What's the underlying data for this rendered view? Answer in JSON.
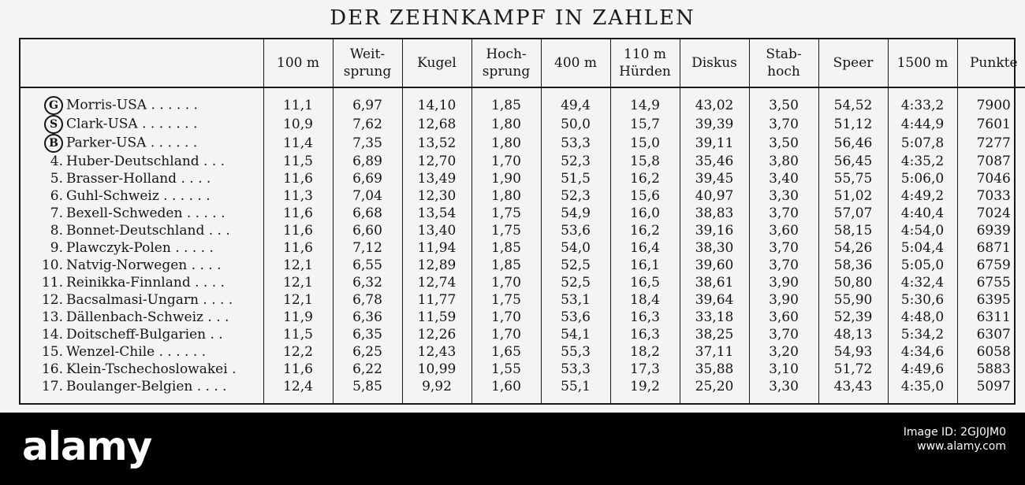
{
  "title": "DER ZEHNKAMPF IN ZAHLEN",
  "headers": [
    "",
    "100 m",
    "Weit-\nsprung",
    "Kugel",
    "Hoch-\nsprung",
    "400 m",
    "110 m\nHürden",
    "Diskus",
    "Stab-\nhoch",
    "Speer",
    "1500 m",
    "Punkte"
  ],
  "rows": [
    {
      "rank": "",
      "medal": "G",
      "name": "Morris-USA",
      "dots": " . . . . . .",
      "values": [
        "11,1",
        "6,97",
        "14,10",
        "1,85",
        "49,4",
        "14,9",
        "43,02",
        "3,50",
        "54,52",
        "4:33,2",
        "7900"
      ]
    },
    {
      "rank": "",
      "medal": "S",
      "name": "Clark-USA",
      "dots": " . . . . . . .",
      "values": [
        "10,9",
        "7,62",
        "12,68",
        "1,80",
        "50,0",
        "15,7",
        "39,39",
        "3,70",
        "51,12",
        "4:44,9",
        "7601"
      ]
    },
    {
      "rank": "",
      "medal": "B",
      "name": "Parker-USA",
      "dots": " . . . . . .",
      "values": [
        "11,4",
        "7,35",
        "13,52",
        "1,80",
        "53,3",
        "15,0",
        "39,11",
        "3,50",
        "56,46",
        "5:07,8",
        "7277"
      ]
    },
    {
      "rank": "4.",
      "medal": "",
      "name": "Huber-Deutschland",
      "dots": " . . .",
      "values": [
        "11,5",
        "6,89",
        "12,70",
        "1,70",
        "52,3",
        "15,8",
        "35,46",
        "3,80",
        "56,45",
        "4:35,2",
        "7087"
      ]
    },
    {
      "rank": "5.",
      "medal": "",
      "name": "Brasser-Holland",
      "dots": " . . . .",
      "values": [
        "11,6",
        "6,69",
        "13,49",
        "1,90",
        "51,5",
        "16,2",
        "39,45",
        "3,40",
        "55,75",
        "5:06,0",
        "7046"
      ]
    },
    {
      "rank": "6.",
      "medal": "",
      "name": "Guhl-Schweiz",
      "dots": " . . . . . .",
      "values": [
        "11,3",
        "7,04",
        "12,30",
        "1,80",
        "52,3",
        "15,6",
        "40,97",
        "3,30",
        "51,02",
        "4:49,2",
        "7033"
      ]
    },
    {
      "rank": "7.",
      "medal": "",
      "name": "Bexell-Schweden",
      "dots": " . . . . .",
      "values": [
        "11,6",
        "6,68",
        "13,54",
        "1,75",
        "54,9",
        "16,0",
        "38,83",
        "3,70",
        "57,07",
        "4:40,4",
        "7024"
      ]
    },
    {
      "rank": "8.",
      "medal": "",
      "name": "Bonnet-Deutschland",
      "dots": " . . .",
      "values": [
        "11,6",
        "6,60",
        "13,40",
        "1,75",
        "53,6",
        "16,2",
        "39,16",
        "3,60",
        "58,15",
        "4:54,0",
        "6939"
      ]
    },
    {
      "rank": "9.",
      "medal": "",
      "name": "Plawczyk-Polen",
      "dots": " . . . . .",
      "values": [
        "11,6",
        "7,12",
        "11,94",
        "1,85",
        "54,0",
        "16,4",
        "38,30",
        "3,70",
        "54,26",
        "5:04,4",
        "6871"
      ]
    },
    {
      "rank": "10.",
      "medal": "",
      "name": "Natvig-Norwegen",
      "dots": " . . . .",
      "values": [
        "12,1",
        "6,55",
        "12,89",
        "1,85",
        "52,5",
        "16,1",
        "39,60",
        "3,70",
        "58,36",
        "5:05,0",
        "6759"
      ]
    },
    {
      "rank": "11.",
      "medal": "",
      "name": "Reinikka-Finnland",
      "dots": " . . . .",
      "values": [
        "12,1",
        "6,32",
        "12,74",
        "1,70",
        "52,5",
        "16,5",
        "38,61",
        "3,90",
        "50,80",
        "4:32,4",
        "6755"
      ]
    },
    {
      "rank": "12.",
      "medal": "",
      "name": "Bacsalmasi-Ungarn",
      "dots": " . . . .",
      "values": [
        "12,1",
        "6,78",
        "11,77",
        "1,75",
        "53,1",
        "18,4",
        "39,64",
        "3,90",
        "55,90",
        "5:30,6",
        "6395"
      ]
    },
    {
      "rank": "13.",
      "medal": "",
      "name": "Dällenbach-Schweiz",
      "dots": " . . .",
      "values": [
        "11,9",
        "6,36",
        "11,59",
        "1,70",
        "53,6",
        "16,3",
        "33,18",
        "3,60",
        "52,39",
        "4:48,0",
        "6311"
      ]
    },
    {
      "rank": "14.",
      "medal": "",
      "name": "Doitscheff-Bulgarien",
      "dots": " . .",
      "values": [
        "11,5",
        "6,35",
        "12,26",
        "1,70",
        "54,1",
        "16,3",
        "38,25",
        "3,70",
        "48,13",
        "5:34,2",
        "6307"
      ]
    },
    {
      "rank": "15.",
      "medal": "",
      "name": "Wenzel-Chile",
      "dots": " . . . . . .",
      "values": [
        "12,2",
        "6,25",
        "12,43",
        "1,65",
        "55,3",
        "18,2",
        "37,11",
        "3,20",
        "54,93",
        "4:34,6",
        "6058"
      ]
    },
    {
      "rank": "16.",
      "medal": "",
      "name": "Klein-Tschechoslowakei",
      "dots": " .",
      "values": [
        "11,6",
        "6,22",
        "10,99",
        "1,55",
        "53,3",
        "17,3",
        "35,88",
        "3,10",
        "51,72",
        "4:49,6",
        "5883"
      ]
    },
    {
      "rank": "17.",
      "medal": "",
      "name": "Boulanger-Belgien",
      "dots": " . . . .",
      "values": [
        "12,4",
        "5,85",
        "9,92",
        "1,60",
        "55,1",
        "19,2",
        "25,20",
        "3,30",
        "43,43",
        "4:35,0",
        "5097"
      ]
    }
  ],
  "watermark": {
    "logo": "alamy",
    "line1": "Image ID: 2GJ0JM0",
    "line2": "www.alamy.com"
  }
}
